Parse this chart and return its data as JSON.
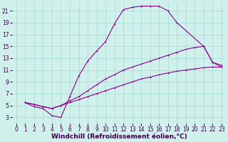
{
  "background_color": "#cff0eb",
  "line_color": "#8b008b",
  "grid_color": "#aaddd8",
  "xlabel": "Windchill (Refroidissement éolien,°C)",
  "xlabel_fontsize": 6.5,
  "tick_fontsize": 5.5,
  "xlim": [
    -0.5,
    23.5
  ],
  "ylim": [
    2,
    22.5
  ],
  "yticks": [
    3,
    5,
    7,
    9,
    11,
    13,
    15,
    17,
    19,
    21
  ],
  "xticks": [
    0,
    1,
    2,
    3,
    4,
    5,
    6,
    7,
    8,
    9,
    10,
    11,
    12,
    13,
    14,
    15,
    16,
    17,
    18,
    19,
    20,
    21,
    22,
    23
  ],
  "loop_x": [
    1,
    2,
    3,
    4,
    5,
    6,
    7,
    8,
    9,
    10,
    11,
    12,
    13,
    14,
    15,
    16,
    17,
    18,
    21,
    22,
    23
  ],
  "loop_y": [
    5.5,
    4.8,
    4.5,
    3.3,
    3.0,
    6.5,
    10.0,
    12.5,
    14.2,
    15.8,
    18.8,
    21.2,
    21.6,
    21.8,
    21.8,
    21.8,
    21.0,
    19.0,
    15.0,
    12.3,
    11.5
  ],
  "diag1_x": [
    1,
    2,
    3,
    4,
    5,
    6,
    7,
    8,
    9,
    10,
    11,
    12,
    13,
    14,
    15,
    16,
    17,
    18,
    19,
    20,
    21,
    22,
    23
  ],
  "diag1_y": [
    5.5,
    5.2,
    4.8,
    4.5,
    5.0,
    5.5,
    6.0,
    6.5,
    7.0,
    7.5,
    8.0,
    8.5,
    9.0,
    9.5,
    9.8,
    10.2,
    10.5,
    10.8,
    11.0,
    11.2,
    11.4,
    11.5,
    11.5
  ],
  "diag2_x": [
    1,
    2,
    3,
    4,
    5,
    6,
    7,
    8,
    9,
    10,
    11,
    12,
    13,
    14,
    15,
    16,
    17,
    18,
    19,
    20,
    21,
    22,
    23
  ],
  "diag2_y": [
    5.5,
    5.2,
    4.8,
    4.5,
    5.0,
    5.8,
    6.5,
    7.5,
    8.5,
    9.5,
    10.2,
    11.0,
    11.5,
    12.0,
    12.5,
    13.0,
    13.5,
    14.0,
    14.5,
    14.8,
    15.0,
    12.3,
    11.8
  ]
}
